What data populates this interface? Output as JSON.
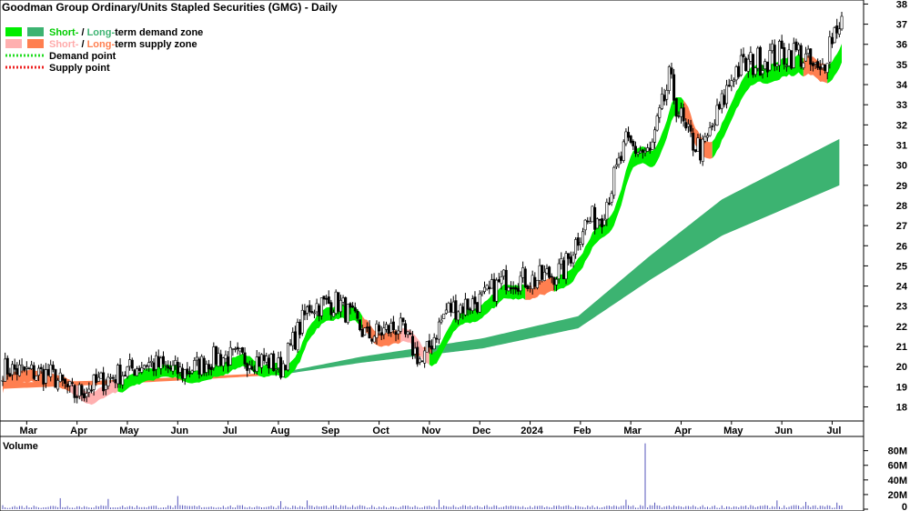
{
  "chart_data": {
    "type": "candlestick",
    "title": "Goodman Group Ordinary/Units Stapled Securities (GMG) - Daily",
    "legend": {
      "short_text": "Short-",
      "slash_text": " / ",
      "long_text": "Long-",
      "demand_zone_suffix": "term demand zone",
      "supply_zone_suffix": "term supply zone",
      "demand_point_label": "Demand point",
      "supply_point_label": "Supply point",
      "placement": "top-left"
    },
    "colors": {
      "short_demand": "#00ee00",
      "long_demand": "#3cb371",
      "short_supply": "#ffb0b0",
      "long_supply": "#ff7f50",
      "demand_point": "#22dd22",
      "supply_point": "#ee2222",
      "volume_bar": "#5555bb",
      "volume_label": "#5b2a86"
    },
    "price_axis": {
      "ticks": [
        18,
        19,
        20,
        21,
        22,
        23,
        24,
        25,
        26,
        27,
        28,
        29,
        30,
        31,
        32,
        33,
        34,
        35,
        36,
        37,
        38
      ],
      "range": [
        17.3,
        38.2
      ]
    },
    "x_axis": {
      "labels": [
        "Mar",
        "Apr",
        "May",
        "Jun",
        "Jul",
        "Aug",
        "Sep",
        "Oct",
        "Nov",
        "Dec",
        "2024",
        "Feb",
        "Mar",
        "Apr",
        "May",
        "Jun",
        "Jul"
      ],
      "label_bar_index": [
        10,
        31,
        52,
        73,
        94,
        115,
        136,
        157,
        178,
        199,
        220,
        241,
        262,
        283,
        304,
        325,
        346
      ],
      "bar_count": 351
    },
    "price_path": [
      [
        0,
        19.9
      ],
      [
        20,
        19.6
      ],
      [
        30,
        18.6
      ],
      [
        40,
        19.2
      ],
      [
        60,
        20.2
      ],
      [
        75,
        19.7
      ],
      [
        90,
        20.5
      ],
      [
        110,
        20.3
      ],
      [
        116,
        19.9
      ],
      [
        128,
        23.0
      ],
      [
        140,
        23.2
      ],
      [
        152,
        21.5
      ],
      [
        165,
        22.0
      ],
      [
        175,
        20.2
      ],
      [
        185,
        22.8
      ],
      [
        200,
        23.3
      ],
      [
        210,
        24.4
      ],
      [
        222,
        24.3
      ],
      [
        234,
        24.8
      ],
      [
        242,
        27.0
      ],
      [
        250,
        27.6
      ],
      [
        260,
        31.0
      ],
      [
        270,
        30.5
      ],
      [
        278,
        34.2
      ],
      [
        285,
        31.5
      ],
      [
        292,
        30.7
      ],
      [
        300,
        33.0
      ],
      [
        305,
        34.7
      ],
      [
        320,
        35.4
      ],
      [
        332,
        35.6
      ],
      [
        341,
        34.4
      ],
      [
        345,
        36.2
      ],
      [
        349,
        37.2
      ]
    ],
    "long_zone": {
      "bar_index": [
        0,
        40,
        80,
        116,
        150,
        200,
        240,
        270,
        300,
        349
      ],
      "upper": [
        19.2,
        19.3,
        19.5,
        19.7,
        20.5,
        21.4,
        22.5,
        25.5,
        28.3,
        31.3
      ],
      "lower": [
        18.9,
        19.1,
        19.35,
        19.6,
        20.2,
        20.9,
        21.9,
        24.3,
        26.5,
        29.0
      ]
    },
    "volume": {
      "label": "Volume",
      "unit": "M",
      "ticks": [
        0,
        20,
        40,
        60,
        80
      ],
      "ticks_labels": [
        "0",
        "20M",
        "40M",
        "60M",
        "80M"
      ],
      "range": [
        0,
        92
      ],
      "spikes": [
        [
          24,
          15
        ],
        [
          44,
          14
        ],
        [
          73,
          18
        ],
        [
          116,
          11
        ],
        [
          127,
          12
        ],
        [
          182,
          13
        ],
        [
          260,
          13
        ],
        [
          268,
          90
        ],
        [
          272,
          9
        ],
        [
          323,
          12
        ],
        [
          335,
          10
        ],
        [
          348,
          9
        ]
      ],
      "base": 4
    }
  }
}
